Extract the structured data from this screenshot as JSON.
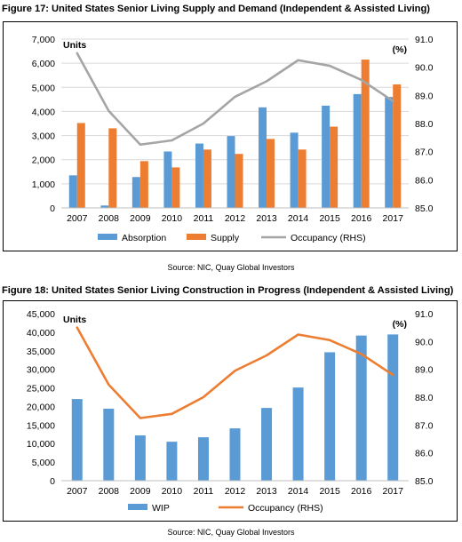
{
  "colors": {
    "absorption": "#5b9bd5",
    "supply": "#ed7d31",
    "occupancy_fig17": "#a5a5a5",
    "wip": "#5b9bd5",
    "occupancy_fig18": "#ed7d31",
    "gridline": "#d9d9d9"
  },
  "figures": [
    {
      "title": "Figure 17: United States Senior Living Supply and Demand (Independent & Assisted Living)",
      "source": "Source: NIC, Quay Global Investors"
    },
    {
      "title": "Figure 18: United States Senior Living Construction in Progress (Independent & Assisted Living)",
      "source": "Source: NIC, Quay Global Investors"
    }
  ],
  "chart_data": [
    {
      "type": "bar",
      "categories": [
        "2007",
        "2008",
        "2009",
        "2010",
        "2011",
        "2012",
        "2013",
        "2014",
        "2015",
        "2016",
        "2017"
      ],
      "left_axis_label": "Units",
      "right_axis_label": "(%)",
      "ylim": [
        0,
        7000
      ],
      "yticks": [
        "0",
        "1,000",
        "2,000",
        "3,000",
        "4,000",
        "5,000",
        "6,000",
        "7,000"
      ],
      "y2lim": [
        85.0,
        91.0
      ],
      "y2ticks": [
        "85.0",
        "86.0",
        "87.0",
        "88.0",
        "89.0",
        "90.0",
        "91.0"
      ],
      "grid": true,
      "legend_position": "bottom",
      "series": [
        {
          "name": "Absorption",
          "type": "bar",
          "axis": "left",
          "values": [
            1350,
            100,
            1280,
            2340,
            2670,
            2980,
            4170,
            3120,
            4240,
            4720,
            4600
          ]
        },
        {
          "name": "Supply",
          "type": "bar",
          "axis": "left",
          "values": [
            3520,
            3300,
            1940,
            1680,
            2420,
            2240,
            2860,
            2420,
            3370,
            6150,
            5120
          ]
        },
        {
          "name": "Occupancy (RHS)",
          "type": "line",
          "axis": "right",
          "values": [
            90.5,
            88.45,
            87.25,
            87.4,
            88.0,
            88.95,
            89.5,
            90.25,
            90.05,
            89.55,
            88.8
          ]
        }
      ]
    },
    {
      "type": "bar",
      "categories": [
        "2007",
        "2008",
        "2009",
        "2010",
        "2011",
        "2012",
        "2013",
        "2014",
        "2015",
        "2016",
        "2017"
      ],
      "left_axis_label": "Units",
      "right_axis_label": "(%)",
      "ylim": [
        0,
        45000
      ],
      "yticks": [
        "0",
        "5,000",
        "10,000",
        "15,000",
        "20,000",
        "25,000",
        "30,000",
        "35,000",
        "40,000",
        "45,000"
      ],
      "y2lim": [
        85.0,
        91.0
      ],
      "y2ticks": [
        "85.0",
        "86.0",
        "87.0",
        "88.0",
        "89.0",
        "90.0",
        "91.0"
      ],
      "grid": false,
      "legend_position": "bottom",
      "series": [
        {
          "name": "WIP",
          "type": "bar",
          "axis": "left",
          "values": [
            22000,
            19400,
            12200,
            10500,
            11700,
            14100,
            19600,
            25100,
            34600,
            39100,
            39400
          ]
        },
        {
          "name": "Occupancy (RHS)",
          "type": "line",
          "axis": "right",
          "values": [
            90.5,
            88.45,
            87.25,
            87.4,
            88.0,
            88.95,
            89.5,
            90.25,
            90.05,
            89.55,
            88.8
          ]
        }
      ]
    }
  ]
}
